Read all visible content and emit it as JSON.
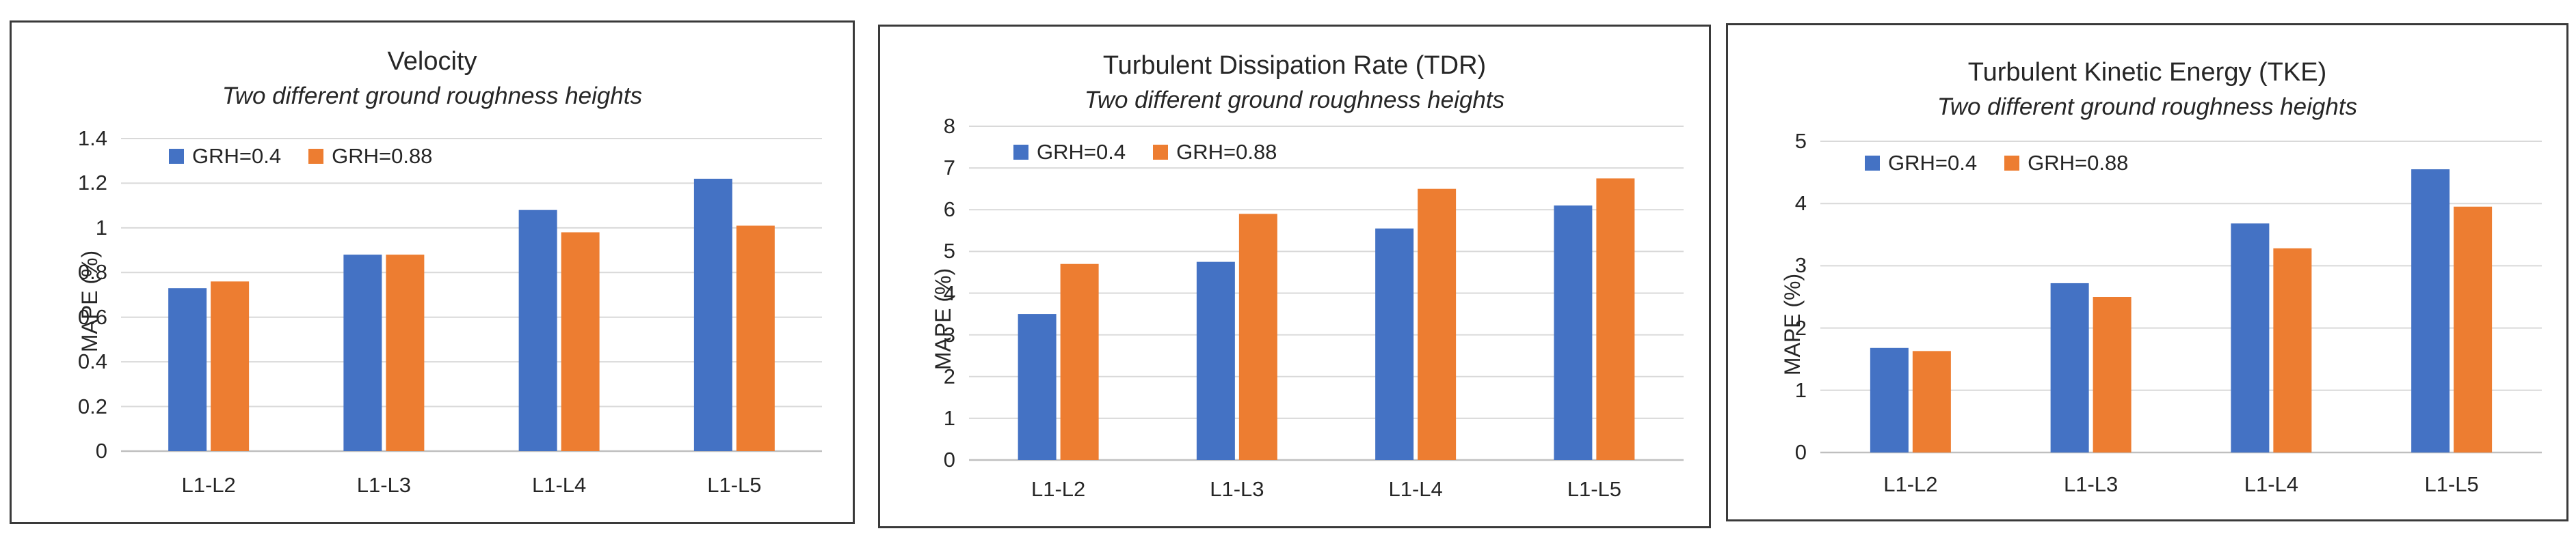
{
  "colors": {
    "grh04": "#4472C4",
    "grh088": "#ED7D31",
    "grid": "#d9d9d9",
    "axis": "#bfbfbf"
  },
  "chart_data": [
    {
      "type": "bar",
      "title": "Velocity",
      "subtitle": "Two different ground roughness heights",
      "xlabel": "",
      "ylabel": "MAPE (%)",
      "categories": [
        "L1-L2",
        "L1-L3",
        "L1-L4",
        "L1-L5"
      ],
      "yticks": [
        "0",
        "0.2",
        "0.4",
        "0.6",
        "0.8",
        "1",
        "1.2",
        "1.4"
      ],
      "ylim": [
        0,
        1.4
      ],
      "grid": true,
      "legend_position": "top-left",
      "series": [
        {
          "name": "GRH=0.4",
          "values": [
            0.73,
            0.88,
            1.08,
            1.22
          ]
        },
        {
          "name": "GRH=0.88",
          "values": [
            0.76,
            0.88,
            0.98,
            1.01
          ]
        }
      ]
    },
    {
      "type": "bar",
      "title": "Turbulent Dissipation Rate (TDR)",
      "subtitle": "Two different ground roughness heights",
      "xlabel": "",
      "ylabel": "MAPE (%)",
      "categories": [
        "L1-L2",
        "L1-L3",
        "L1-L4",
        "L1-L5"
      ],
      "yticks": [
        "0",
        "1",
        "2",
        "3",
        "4",
        "5",
        "6",
        "7",
        "8"
      ],
      "ylim": [
        0,
        8
      ],
      "grid": true,
      "legend_position": "top-left",
      "series": [
        {
          "name": "GRH=0.4",
          "values": [
            3.5,
            4.75,
            5.55,
            6.1
          ]
        },
        {
          "name": "GRH=0.88",
          "values": [
            4.7,
            5.9,
            6.5,
            6.75
          ]
        }
      ]
    },
    {
      "type": "bar",
      "title": "Turbulent Kinetic Energy (TKE)",
      "subtitle": "Two different ground roughness heights",
      "xlabel": "",
      "ylabel": "MAPE (%)",
      "categories": [
        "L1-L2",
        "L1-L3",
        "L1-L4",
        "L1-L5"
      ],
      "yticks": [
        "0",
        "1",
        "2",
        "3",
        "4",
        "5"
      ],
      "ylim": [
        0,
        5
      ],
      "grid": true,
      "legend_position": "top-left",
      "series": [
        {
          "name": "GRH=0.4",
          "values": [
            1.68,
            2.72,
            3.68,
            4.55
          ]
        },
        {
          "name": "GRH=0.88",
          "values": [
            1.63,
            2.5,
            3.28,
            3.95
          ]
        }
      ]
    }
  ]
}
